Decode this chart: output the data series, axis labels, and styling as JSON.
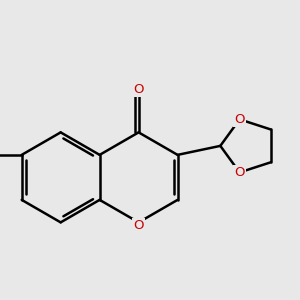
{
  "background_color": "#e8e8e8",
  "bond_color": "#000000",
  "o_color": "#cc0000",
  "cl_color": "#00aa00",
  "lw": 1.8,
  "figsize": [
    3.0,
    3.0
  ],
  "dpi": 100,
  "xlim": [
    -2.2,
    2.8
  ],
  "ylim": [
    -2.2,
    2.2
  ]
}
